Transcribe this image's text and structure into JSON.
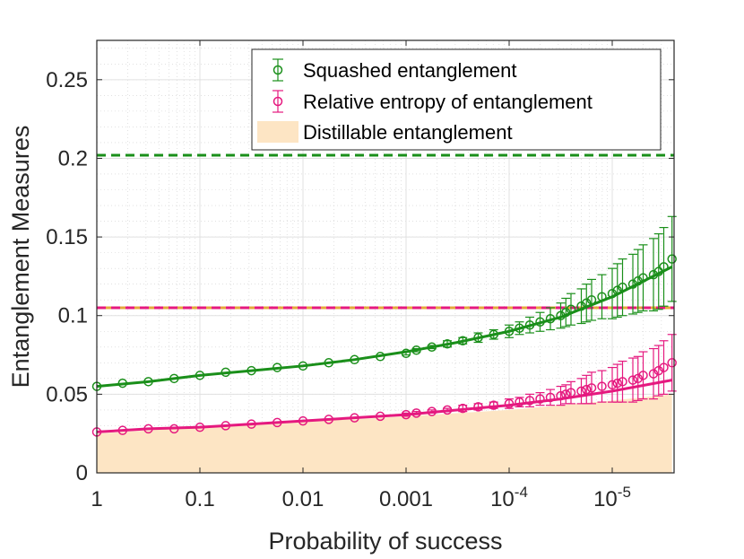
{
  "chart_data": {
    "type": "line",
    "title": "",
    "xlabel": "Probability of success",
    "ylabel": "Entanglement Measures",
    "x_scale": "log-reversed",
    "x_range_log10": [
      0,
      -5.6
    ],
    "ylim": [
      0,
      0.275
    ],
    "grid": true,
    "minor_grid": true,
    "legend_position": "top-right",
    "x_ticks": [
      {
        "log10": 0,
        "label": "1"
      },
      {
        "log10": -1,
        "label": "0.1"
      },
      {
        "log10": -2,
        "label": "0.01"
      },
      {
        "log10": -3,
        "label": "0.001"
      },
      {
        "log10": -4,
        "label": "10",
        "exp": "-4"
      },
      {
        "log10": -5,
        "label": "10",
        "exp": "-5"
      }
    ],
    "y_ticks": [
      {
        "value": 0,
        "label": "0"
      },
      {
        "value": 0.05,
        "label": "0.05"
      },
      {
        "value": 0.1,
        "label": "0.1"
      },
      {
        "value": 0.15,
        "label": "0.15"
      },
      {
        "value": 0.2,
        "label": "0.2"
      },
      {
        "value": 0.25,
        "label": "0.25"
      }
    ],
    "hlines": [
      {
        "value": 0.202,
        "color": "#1a8f1a",
        "style": "dashed"
      },
      {
        "value": 0.105,
        "color": "#e5a83c",
        "style": "solid"
      },
      {
        "value": 0.105,
        "color": "#e5197f",
        "style": "dashed"
      }
    ],
    "series": [
      {
        "name": "Squashed entanglement",
        "color": "#1a8f1a",
        "x_log10": [
          0,
          -0.25,
          -0.5,
          -0.75,
          -1.0,
          -1.25,
          -1.5,
          -1.75,
          -2.0,
          -2.25,
          -2.5,
          -2.75,
          -3.0,
          -3.1,
          -3.25,
          -3.4,
          -3.55,
          -3.7,
          -3.85,
          -4.0,
          -4.1,
          -4.2,
          -4.3,
          -4.4,
          -4.5,
          -4.55,
          -4.6,
          -4.7,
          -4.75,
          -4.8,
          -4.9,
          -5.0,
          -5.05,
          -5.1,
          -5.2,
          -5.25,
          -5.3,
          -5.4,
          -5.45,
          -5.5,
          -5.58
        ],
        "values": [
          0.055,
          0.057,
          0.058,
          0.06,
          0.062,
          0.064,
          0.065,
          0.067,
          0.068,
          0.07,
          0.072,
          0.074,
          0.076,
          0.078,
          0.08,
          0.082,
          0.084,
          0.086,
          0.088,
          0.09,
          0.092,
          0.094,
          0.096,
          0.098,
          0.1,
          0.102,
          0.104,
          0.106,
          0.108,
          0.11,
          0.112,
          0.114,
          0.116,
          0.118,
          0.12,
          0.122,
          0.124,
          0.126,
          0.128,
          0.131,
          0.136
        ],
        "errors": [
          0.0,
          0.0,
          0.0,
          0.0,
          0.0,
          0.0,
          0.0,
          0.0,
          0.0,
          0.0,
          0.0,
          0.0,
          0.001,
          0.001,
          0.001,
          0.002,
          0.002,
          0.003,
          0.003,
          0.004,
          0.004,
          0.005,
          0.006,
          0.007,
          0.008,
          0.009,
          0.01,
          0.011,
          0.012,
          0.013,
          0.014,
          0.016,
          0.017,
          0.018,
          0.019,
          0.02,
          0.021,
          0.023,
          0.024,
          0.025,
          0.027
        ],
        "fit": {
          "x_log10": [
            0,
            -0.5,
            -1.0,
            -1.5,
            -2.0,
            -2.5,
            -3.0,
            -3.5,
            -4.0,
            -4.5,
            -5.0,
            -5.58
          ],
          "values": [
            0.055,
            0.058,
            0.062,
            0.065,
            0.068,
            0.072,
            0.077,
            0.083,
            0.09,
            0.099,
            0.112,
            0.131
          ]
        }
      },
      {
        "name": "Relative entropy of entanglement",
        "color": "#e5197f",
        "x_log10": [
          0,
          -0.25,
          -0.5,
          -0.75,
          -1.0,
          -1.25,
          -1.5,
          -1.75,
          -2.0,
          -2.25,
          -2.5,
          -2.75,
          -3.0,
          -3.1,
          -3.25,
          -3.4,
          -3.55,
          -3.7,
          -3.85,
          -4.0,
          -4.1,
          -4.2,
          -4.3,
          -4.4,
          -4.5,
          -4.55,
          -4.6,
          -4.7,
          -4.75,
          -4.8,
          -4.9,
          -5.0,
          -5.05,
          -5.1,
          -5.2,
          -5.25,
          -5.3,
          -5.4,
          -5.45,
          -5.5,
          -5.58
        ],
        "values": [
          0.026,
          0.027,
          0.028,
          0.028,
          0.029,
          0.03,
          0.031,
          0.032,
          0.033,
          0.034,
          0.035,
          0.036,
          0.037,
          0.038,
          0.039,
          0.04,
          0.041,
          0.042,
          0.043,
          0.044,
          0.045,
          0.046,
          0.047,
          0.048,
          0.049,
          0.05,
          0.051,
          0.052,
          0.053,
          0.054,
          0.055,
          0.056,
          0.057,
          0.058,
          0.059,
          0.06,
          0.062,
          0.063,
          0.065,
          0.067,
          0.07
        ],
        "errors": [
          0.0,
          0.0,
          0.0,
          0.0,
          0.0,
          0.0,
          0.0,
          0.0,
          0.0,
          0.0,
          0.0,
          0.0,
          0.001,
          0.001,
          0.001,
          0.001,
          0.002,
          0.002,
          0.002,
          0.003,
          0.003,
          0.004,
          0.004,
          0.005,
          0.006,
          0.006,
          0.007,
          0.008,
          0.009,
          0.01,
          0.01,
          0.011,
          0.012,
          0.013,
          0.014,
          0.014,
          0.015,
          0.016,
          0.016,
          0.017,
          0.018
        ],
        "fit": {
          "x_log10": [
            0,
            -0.5,
            -1.0,
            -1.5,
            -2.0,
            -2.5,
            -3.0,
            -3.5,
            -4.0,
            -4.5,
            -5.0,
            -5.58
          ],
          "values": [
            0.026,
            0.028,
            0.029,
            0.031,
            0.033,
            0.035,
            0.037,
            0.04,
            0.043,
            0.047,
            0.052,
            0.059
          ]
        }
      },
      {
        "name": "Distillable entanglement",
        "color": "#fde5c4",
        "type": "area",
        "x_log10": [
          0,
          -0.5,
          -1.0,
          -1.5,
          -2.0,
          -2.5,
          -3.0,
          -3.5,
          -4.0,
          -4.5,
          -5.0,
          -5.58
        ],
        "values": [
          0.025,
          0.027,
          0.029,
          0.031,
          0.033,
          0.034,
          0.036,
          0.038,
          0.04,
          0.043,
          0.046,
          0.05
        ]
      }
    ]
  }
}
